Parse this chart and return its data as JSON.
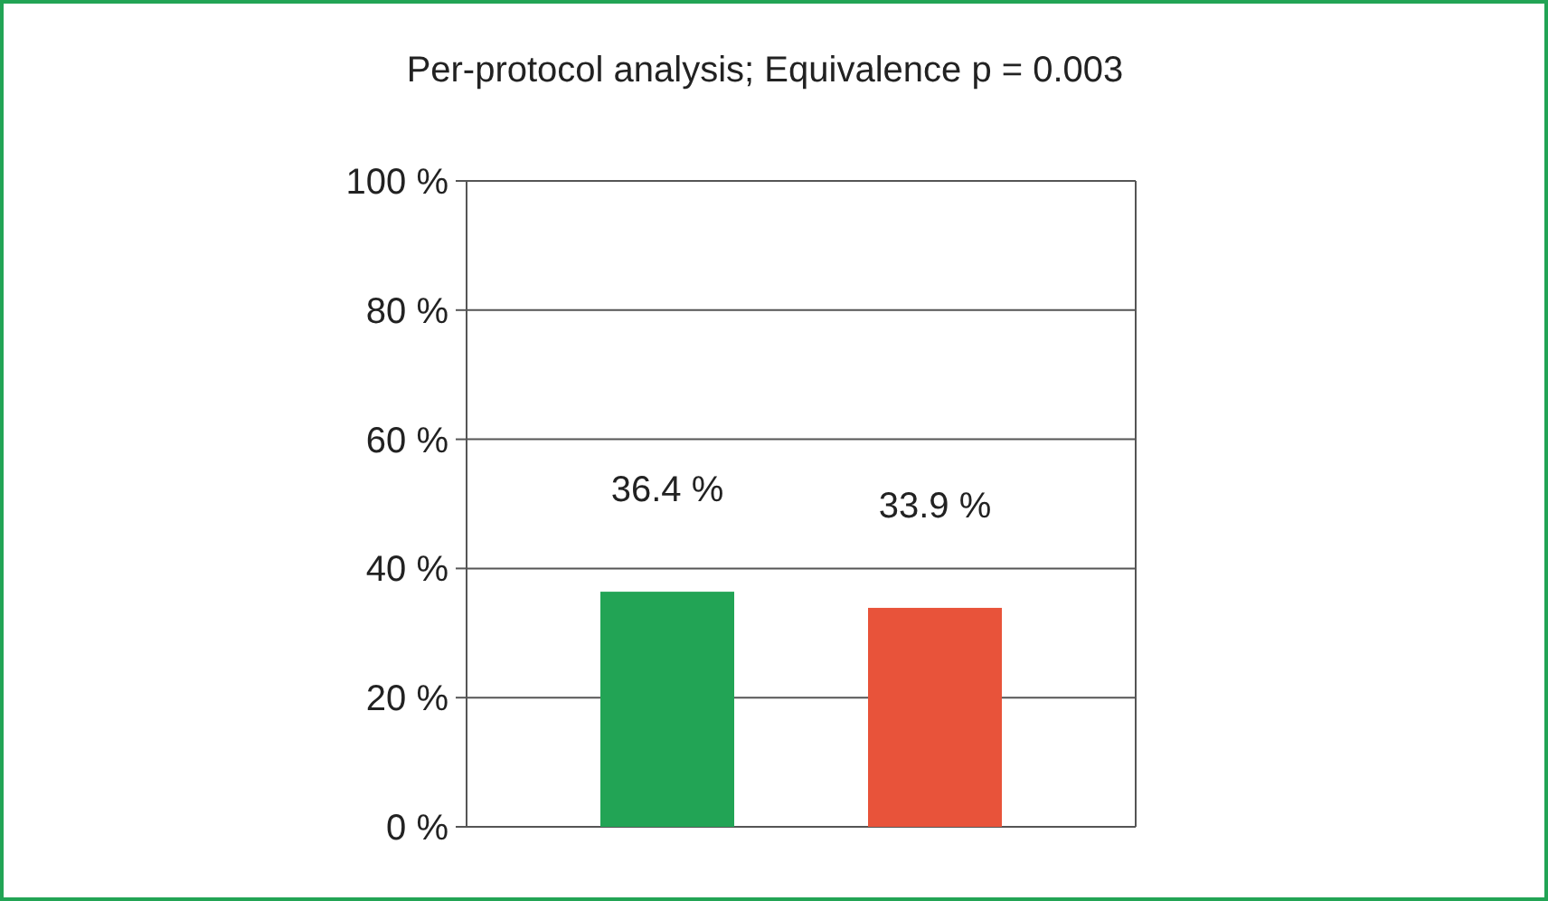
{
  "chart_data": {
    "type": "bar",
    "title": "Per-protocol analysis; Equivalence p = 0.003",
    "categories": [
      null,
      null
    ],
    "values": [
      36.4,
      33.9
    ],
    "colors": [
      "#22a455",
      "#e8533a"
    ],
    "value_labels": [
      "36.4 %",
      "33.9 %"
    ],
    "ylim": [
      0,
      100
    ],
    "yticks": [
      {
        "value": 0,
        "label": "0 %"
      },
      {
        "value": 20,
        "label": "20 %"
      },
      {
        "value": 40,
        "label": "40 %"
      },
      {
        "value": 60,
        "label": "60 %"
      },
      {
        "value": 80,
        "label": "80 %"
      },
      {
        "value": 100,
        "label": "100 %"
      }
    ],
    "grid": "y"
  }
}
